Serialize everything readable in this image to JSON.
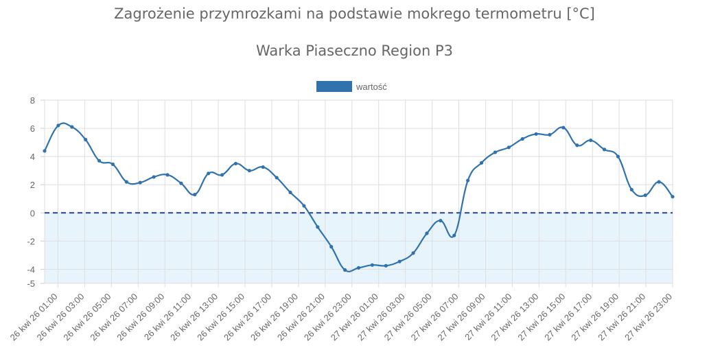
{
  "chart_data": {
    "type": "line",
    "title": "Zagrożenie przymrozkami na podstawie mokrego termometru [°C]",
    "subtitle": "Warka Piaseczno Region P3",
    "legend": {
      "placement": "top-center",
      "entries": [
        "wartość"
      ]
    },
    "ylim": [
      -5,
      8
    ],
    "yticks": [
      "8",
      "6",
      "4",
      "2",
      "0",
      "-2",
      "-4",
      "-5"
    ],
    "ytick_values": [
      8,
      6,
      4,
      2,
      0,
      -2,
      -4,
      -5
    ],
    "grid": true,
    "threshold": 0,
    "x_labels": [
      "26 kwi 26 01:00",
      "26 kwi 26 03:00",
      "26 kwi 26 05:00",
      "26 kwi 26 07:00",
      "26 kwi 26 09:00",
      "26 kwi 26 11:00",
      "26 kwi 26 13:00",
      "26 kwi 26 15:00",
      "26 kwi 26 17:00",
      "26 kwi 26 19:00",
      "26 kwi 26 21:00",
      "26 kwi 26 23:00",
      "27 kwi 26 01:00",
      "27 kwi 26 03:00",
      "27 kwi 26 05:00",
      "27 kwi 26 07:00",
      "27 kwi 26 09:00",
      "27 kwi 26 11:00",
      "27 kwi 26 13:00",
      "27 kwi 26 15:00",
      "27 kwi 26 17:00",
      "27 kwi 26 19:00",
      "27 kwi 26 21:00",
      "27 kwi 26 23:00"
    ],
    "series": [
      {
        "name": "wartość",
        "color": "#2f72ad",
        "values": [
          4.4,
          6.2,
          6.1,
          5.2,
          3.7,
          3.45,
          2.2,
          2.15,
          2.55,
          2.7,
          2.1,
          1.3,
          2.8,
          2.7,
          3.5,
          3.0,
          3.25,
          2.5,
          1.45,
          0.5,
          -1.0,
          -2.4,
          -4.05,
          -3.9,
          -3.7,
          -3.75,
          -3.45,
          -2.85,
          -1.45,
          -0.55,
          -1.6,
          2.3,
          3.55,
          4.3,
          4.65,
          5.25,
          5.6,
          5.55,
          6.05,
          4.8,
          5.15,
          4.5,
          4.0,
          1.65,
          1.25,
          2.2,
          1.15
        ]
      }
    ]
  }
}
